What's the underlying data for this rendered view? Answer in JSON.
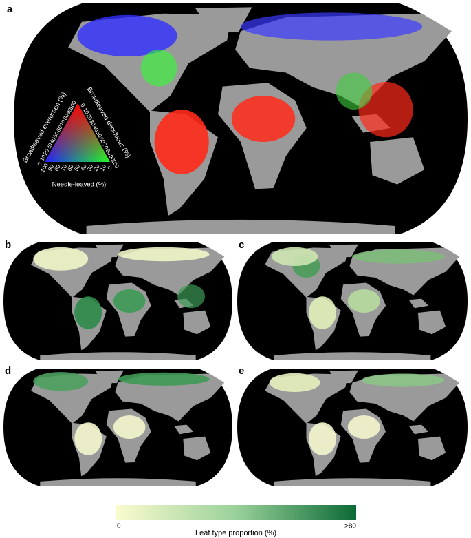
{
  "panels": [
    {
      "label": "a"
    },
    {
      "label": "b"
    },
    {
      "label": "c"
    },
    {
      "label": "d"
    },
    {
      "label": "e"
    }
  ],
  "ternary": {
    "axes": [
      {
        "label": "Broadleaved evergreen (%)",
        "ticks": [
          0,
          10,
          20,
          30,
          40,
          50,
          60,
          70,
          80,
          90,
          100
        ]
      },
      {
        "label": "Broadleaved deciduous (%)",
        "ticks": [
          0,
          10,
          20,
          30,
          40,
          50,
          60,
          70,
          80,
          90,
          100
        ]
      },
      {
        "label": "Needle-leaved (%)",
        "ticks": [
          100,
          90,
          80,
          70,
          60,
          50,
          40,
          30,
          20,
          10,
          0
        ]
      }
    ]
  },
  "colorbar": {
    "min_label": "0",
    "max_label": ">80",
    "title": "Leaf type proportion (%)"
  }
}
